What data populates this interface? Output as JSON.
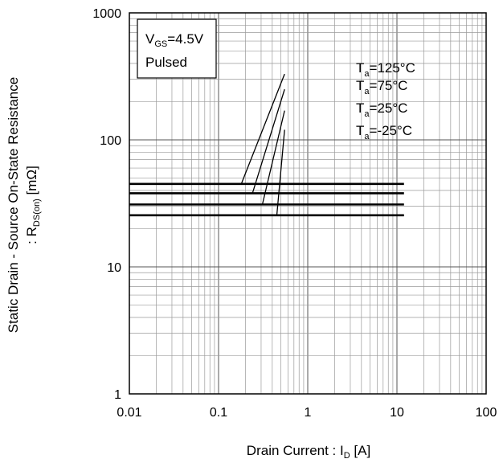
{
  "chart_data": {
    "type": "line",
    "xlabel": {
      "main": "Drain Current : I",
      "sub": "D",
      "unit": " [A]"
    },
    "ylabel": {
      "line1": "Static Drain - Source On-State Resistance",
      "line2_pre": ": R",
      "line2_sub": "DS(on)",
      "line2_unit": " [mΩ]"
    },
    "x_scale": "log",
    "y_scale": "log",
    "xlim": [
      0.01,
      100
    ],
    "ylim": [
      1,
      1000
    ],
    "x_ticks": [
      0.01,
      0.1,
      1,
      10,
      100
    ],
    "x_tick_labels": [
      "0.01",
      "0.1",
      "1",
      "10",
      "100"
    ],
    "y_ticks": [
      1,
      10,
      100,
      1000
    ],
    "y_tick_labels": [
      "1",
      "10",
      "100",
      "1000"
    ],
    "grid": true,
    "conditions_box": {
      "v_main": "V",
      "v_sub": "GS",
      "v_val": "=4.5V",
      "mode": "Pulsed"
    },
    "series": [
      {
        "name": "Ta=125°C",
        "label_main": "T",
        "label_sub": "a",
        "label_val": "=125°C",
        "x": [
          0.01,
          12
        ],
        "y": [
          45,
          45
        ],
        "leader_from": [
          0.18,
          45
        ],
        "leader_to": [
          0.55,
          330
        ]
      },
      {
        "name": "Ta=75°C",
        "label_main": "T",
        "label_sub": "a",
        "label_val": "=75°C",
        "x": [
          0.01,
          12
        ],
        "y": [
          38,
          38
        ],
        "leader_from": [
          0.24,
          38
        ],
        "leader_to": [
          0.55,
          250
        ]
      },
      {
        "name": "Ta=25°C",
        "label_main": "T",
        "label_sub": "a",
        "label_val": "=25°C",
        "x": [
          0.01,
          12
        ],
        "y": [
          31,
          31
        ],
        "leader_from": [
          0.31,
          31
        ],
        "leader_to": [
          0.55,
          170
        ]
      },
      {
        "name": "Ta=-25°C",
        "label_main": "T",
        "label_sub": "a",
        "label_val": "=-25°C",
        "x": [
          0.01,
          12
        ],
        "y": [
          25.5,
          25.5
        ],
        "leader_from": [
          0.45,
          25.5
        ],
        "leader_to": [
          0.55,
          120
        ]
      }
    ]
  }
}
